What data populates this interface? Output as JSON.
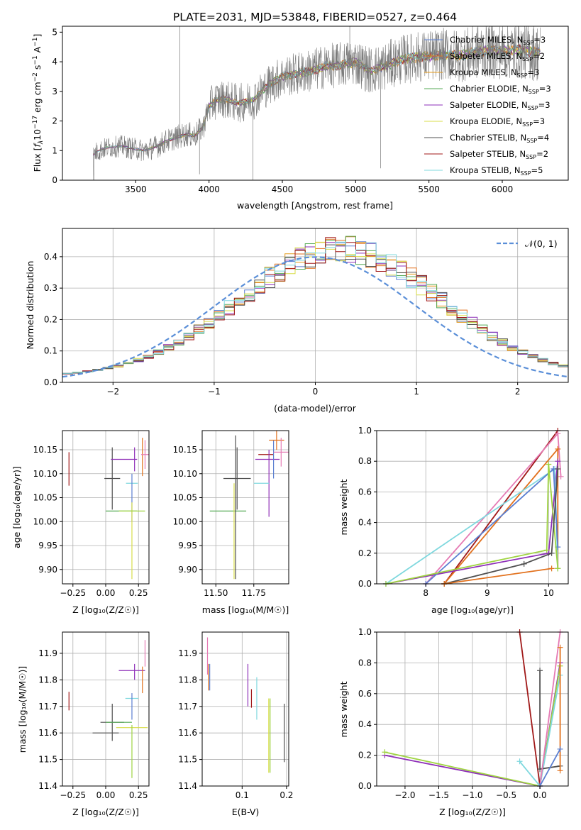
{
  "colors": {
    "chabrier_miles": "#5b7fd1",
    "salpeter_miles": "#e2711d",
    "kroupa_miles": "#e39a1b",
    "chabrier_elodie": "#55aa55",
    "salpeter_elodie": "#8e2fb8",
    "kroupa_elodie": "#d8dd4a",
    "chabrier_stelib": "#505050",
    "salpeter_stelib": "#a01818",
    "kroupa_stelib": "#7fd8de",
    "pink": "#e57ab4",
    "lime": "#9fd441",
    "normal_curve": "#5b8fd8"
  },
  "chart_data": [
    {
      "id": "spectrum",
      "type": "line",
      "title": "PLATE=2031, MJD=53848, FIBERID=0527, z=0.464",
      "xlabel": "wavelength [Angstrom, rest frame]",
      "ylabel_parts": [
        "Flux [",
        "f",
        "λ",
        "10",
        "−17",
        " erg cm",
        "−2",
        " s",
        "−1",
        " A",
        "−1",
        "]"
      ],
      "xlim": [
        3000,
        6450
      ],
      "ylim": [
        0,
        5.2
      ],
      "xticks": [
        "3500",
        "4000",
        "4500",
        "5000",
        "5500",
        "6000"
      ],
      "yticks": [
        "0",
        "1",
        "2",
        "3",
        "4",
        "5"
      ],
      "data_range": [
        3210,
        6260
      ],
      "legend_position": "upper-right",
      "series": [
        {
          "name": "Chabrier MILES, N",
          "sub": "SSP",
          "suffix": "=3",
          "color_key": "chabrier_miles"
        },
        {
          "name": "Salpeter MILES, N",
          "sub": "SSP",
          "suffix": "=2",
          "color_key": "salpeter_miles"
        },
        {
          "name": "Kroupa MILES, N",
          "sub": "SSP",
          "suffix": "=3",
          "color_key": "kroupa_miles"
        },
        {
          "name": "Chabrier ELODIE, N",
          "sub": "SSP",
          "suffix": "=3",
          "color_key": "chabrier_elodie"
        },
        {
          "name": "Salpeter ELODIE, N",
          "sub": "SSP",
          "suffix": "=3",
          "color_key": "salpeter_elodie"
        },
        {
          "name": "Kroupa ELODIE, N",
          "sub": "SSP",
          "suffix": "=3",
          "color_key": "kroupa_elodie"
        },
        {
          "name": "Chabrier STELIB, N",
          "sub": "SSP",
          "suffix": "=4",
          "color_key": "chabrier_stelib"
        },
        {
          "name": "Salpeter STELIB, N",
          "sub": "SSP",
          "suffix": "=2",
          "color_key": "salpeter_stelib"
        },
        {
          "name": "Kroupa STELIB, N",
          "sub": "SSP",
          "suffix": "=5",
          "color_key": "kroupa_stelib"
        }
      ],
      "model_continuum": {
        "x": [
          3210,
          3230,
          3300,
          3400,
          3500,
          3560,
          3650,
          3700,
          3780,
          3850,
          3900,
          3960,
          4000,
          4050,
          4100,
          4200,
          4300,
          4400,
          4500,
          4600,
          4700,
          4800,
          4900,
          5000,
          5100,
          5200,
          5300,
          5400,
          5500,
          5600,
          5700,
          5800,
          5900,
          6000,
          6100,
          6200,
          6260
        ],
        "y": [
          0.85,
          0.95,
          1.1,
          1.15,
          1.05,
          1.0,
          1.15,
          1.3,
          1.45,
          1.55,
          1.5,
          1.8,
          2.5,
          2.7,
          2.75,
          2.6,
          2.7,
          3.2,
          3.5,
          3.6,
          3.7,
          3.85,
          3.9,
          4.0,
          3.7,
          3.85,
          4.05,
          4.15,
          4.2,
          4.25,
          4.2,
          4.3,
          4.4,
          4.35,
          4.4,
          4.35,
          4.3
        ]
      }
    },
    {
      "id": "residuals",
      "type": "histogram",
      "xlabel": "(data-model)/error",
      "ylabel": "Normed distribution",
      "xlim": [
        -2.5,
        2.5
      ],
      "ylim": [
        0,
        0.49
      ],
      "xticks": [
        "−2",
        "−1",
        "0",
        "1",
        "2"
      ],
      "yticks": [
        "0.0",
        "0.1",
        "0.2",
        "0.3",
        "0.4"
      ],
      "bin_width": 0.1,
      "legend_label": "𝒩(0, 1)",
      "legend_position": "upper-right",
      "grid": true
    },
    {
      "id": "age_vs_Z",
      "type": "scatter",
      "xlabel": "Z [log₁₀(Z/Z☉)]",
      "ylabel": "age  [log₁₀(age/yr)]",
      "xlim": [
        -0.33,
        0.33
      ],
      "ylim": [
        9.87,
        10.19
      ],
      "xticks": [
        "−0.25",
        "0.00",
        "0.25"
      ],
      "yticks": [
        "9.90",
        "9.95",
        "10.00",
        "10.05",
        "10.10",
        "10.15"
      ],
      "grid": true
    },
    {
      "id": "age_vs_mass",
      "type": "scatter",
      "xlabel": "mass [log₁₀(M/M☉)]",
      "xlim": [
        11.41,
        11.98
      ],
      "ylim": [
        9.87,
        10.19
      ],
      "xticks": [
        "11.50",
        "11.75"
      ],
      "yticks": [
        "9.90",
        "9.95",
        "10.00",
        "10.05",
        "10.10",
        "10.15"
      ],
      "grid": true
    },
    {
      "id": "weight_vs_age",
      "type": "line",
      "xlabel": "age  [log₁₀(age/yr)]",
      "ylabel": "mass weight",
      "xlim": [
        7.2,
        10.32
      ],
      "ylim": [
        0,
        1.0
      ],
      "xticks": [
        "8",
        "9",
        "10"
      ],
      "yticks": [
        "0.0",
        "0.2",
        "0.4",
        "0.6",
        "0.8",
        "1.0"
      ],
      "grid": true
    },
    {
      "id": "mass_vs_Z",
      "type": "scatter",
      "xlabel": "Z [log₁₀(Z/Z☉)]",
      "ylabel": "mass [log₁₀(M/M☉)]",
      "xlim": [
        -0.33,
        0.33
      ],
      "ylim": [
        11.4,
        11.98
      ],
      "xticks": [
        "−0.25",
        "0.00",
        "0.25"
      ],
      "yticks": [
        "11.4",
        "11.5",
        "11.6",
        "11.7",
        "11.8",
        "11.9"
      ],
      "grid": true
    },
    {
      "id": "mass_vs_ebv",
      "type": "scatter",
      "xlabel": "E(B-V)",
      "xlim": [
        0.01,
        0.205
      ],
      "ylim": [
        11.4,
        11.98
      ],
      "xticks": [
        "0.1",
        "0.2"
      ],
      "yticks": [
        "11.4",
        "11.5",
        "11.6",
        "11.7",
        "11.8",
        "11.9"
      ],
      "grid": true
    },
    {
      "id": "weight_vs_Z",
      "type": "line",
      "xlabel": "Z [log₁₀(Z/Z☉)]",
      "ylabel": "mass weight",
      "xlim": [
        -2.42,
        0.42
      ],
      "ylim": [
        0,
        1.0
      ],
      "xticks": [
        "−2.0",
        "−1.5",
        "−1.0",
        "−0.5",
        "0.0"
      ],
      "yticks": [
        "0.0",
        "0.2",
        "0.4",
        "0.6",
        "0.8",
        "1.0"
      ],
      "grid": true
    }
  ]
}
